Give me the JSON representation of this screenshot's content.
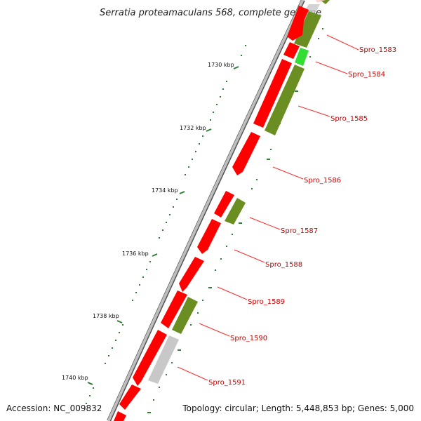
{
  "title": "Serratia proteamaculans 568, complete genome",
  "footer": {
    "accession": "Accession: NC_009832",
    "summary": "Topology: circular; Length: 5,448,853 bp; Genes: 5,000"
  },
  "scale": {
    "ticks": [
      "1730 kbp",
      "1732 kbp",
      "1734 kbp",
      "1736 kbp",
      "1738 kbp",
      "1740 kbp"
    ]
  },
  "genes": [
    {
      "id": "Spro_1583",
      "label": "Spro_1583"
    },
    {
      "id": "Spro_1584",
      "label": "Spro_1584"
    },
    {
      "id": "Spro_1585",
      "label": "Spro_1585"
    },
    {
      "id": "Spro_1586",
      "label": "Spro_1586"
    },
    {
      "id": "Spro_1587",
      "label": "Spro_1587"
    },
    {
      "id": "Spro_1588",
      "label": "Spro_1588"
    },
    {
      "id": "Spro_1589",
      "label": "Spro_1589"
    },
    {
      "id": "Spro_1590",
      "label": "Spro_1590"
    },
    {
      "id": "Spro_1591",
      "label": "Spro_1591"
    }
  ],
  "colors": {
    "forward_cds": "#ff0000",
    "reverse_cds": "#6b8e23",
    "highlight_cds": "#33dd33",
    "other_feature": "#c0c0c0",
    "backbone": "#8a8a8a",
    "label": "#cc0000",
    "tick": "#2e7d32"
  }
}
